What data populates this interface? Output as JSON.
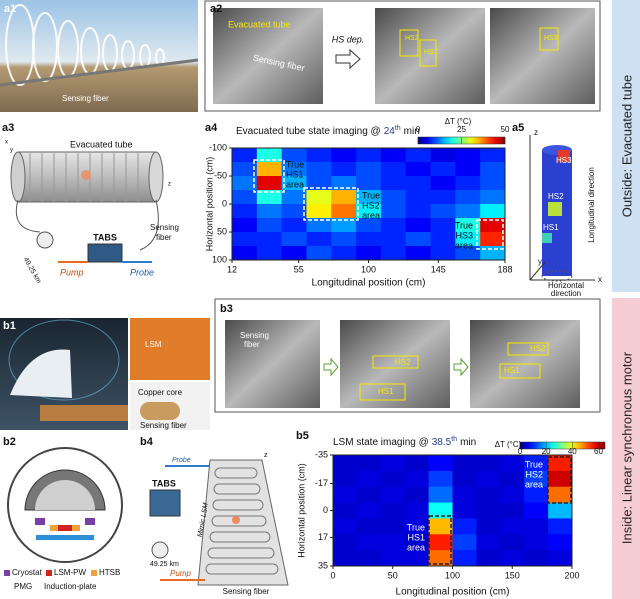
{
  "section_labels": [
    "Outside: Evacuated tube",
    "Inside: Linear synchronous motor"
  ],
  "panel_labels": [
    "a1",
    "a2",
    "a3",
    "a4",
    "a5",
    "b1",
    "b2",
    "b3",
    "b4",
    "b5"
  ],
  "a1": {
    "sensing_fiber": "Sensing fiber"
  },
  "a2": {
    "evacuated_tube": "Evacuated tube",
    "sensing_fiber": "Sensing fiber",
    "step": "HS dep.",
    "hs_middle": [
      "HS2",
      "HS1"
    ],
    "hs_right": "HS3"
  },
  "a3": {
    "evacuated_tube": "Evacuated tube",
    "tabs": "TABS",
    "distance": "49.25 km",
    "pump": "Pump",
    "probe": "Probe",
    "sensing_fiber": [
      "Sensing",
      "fiber"
    ],
    "axes": [
      "z",
      "y",
      "x"
    ]
  },
  "a5": {
    "hs": [
      "HS1",
      "HS2",
      "HS3"
    ],
    "axes": [
      "z",
      "y",
      "x"
    ],
    "longitudinal": "Longitudinal direction",
    "horizontal": [
      "Horizontal",
      "direction"
    ]
  },
  "b1": {
    "lsm": "LSM",
    "copper_core": "Copper core",
    "sensing_fiber": "Sensing fiber"
  },
  "b2": {
    "legend": [
      "Cryostat",
      "LSM-PW",
      "HTSB",
      "PMG",
      "Induction-plate"
    ]
  },
  "b3": {
    "sensing_fiber": [
      "Sensing",
      "fiber"
    ],
    "hs_middle": [
      "HS2",
      "HS1"
    ],
    "hs_right": [
      "HS2",
      "HS1"
    ]
  },
  "b4": {
    "tabs": "TABS",
    "distance": "49.25 km",
    "probe": "Probe",
    "pump": "Pump",
    "mimic": "Mimic LSM",
    "sensing_fiber": "Sensing fiber",
    "axis": "z"
  },
  "chart_data": [
    {
      "type": "heatmap",
      "title": "Evacuated tube state imaging @",
      "time": "24",
      "time_suffix": "th",
      "time_unit": "min",
      "xlabel": "Longitudinal position (cm)",
      "ylabel": "Horizontal position (cm)",
      "colorbar_label": "ΔT (°C)",
      "xlim": [
        12,
        188
      ],
      "xticks": [
        12,
        55,
        100,
        145,
        188
      ],
      "ylim": [
        -100,
        100
      ],
      "yticks": [
        -100,
        -50,
        0,
        50,
        100
      ],
      "y_reversed": true,
      "clim": [
        0,
        50
      ],
      "cticks": [
        0,
        25,
        50
      ],
      "xbins": [
        12,
        28,
        44,
        60,
        76,
        92,
        108,
        124,
        140,
        156,
        172,
        188
      ],
      "ybins": [
        -100,
        -75,
        -50,
        -25,
        0,
        25,
        50,
        75,
        100
      ],
      "z": [
        [
          8,
          20,
          10,
          8,
          6,
          8,
          6,
          8,
          5,
          6,
          8
        ],
        [
          10,
          35,
          12,
          10,
          8,
          10,
          8,
          6,
          8,
          6,
          10
        ],
        [
          12,
          45,
          15,
          10,
          12,
          10,
          8,
          8,
          6,
          8,
          10
        ],
        [
          10,
          20,
          12,
          30,
          35,
          15,
          10,
          8,
          8,
          10,
          12
        ],
        [
          8,
          12,
          10,
          32,
          38,
          18,
          10,
          8,
          10,
          12,
          18
        ],
        [
          6,
          10,
          8,
          12,
          14,
          10,
          8,
          6,
          8,
          20,
          45
        ],
        [
          8,
          8,
          10,
          8,
          10,
          8,
          8,
          10,
          8,
          18,
          42
        ],
        [
          6,
          8,
          6,
          10,
          8,
          6,
          8,
          6,
          8,
          10,
          15
        ]
      ],
      "annotations": [
        {
          "lines": [
            "True",
            "HS1",
            "area"
          ]
        },
        {
          "lines": [
            "True",
            "HS2",
            "area"
          ]
        },
        {
          "lines": [
            "True",
            "HS3",
            "area"
          ]
        }
      ]
    },
    {
      "type": "heatmap",
      "title": "LSM state imaging @",
      "time": "38.5",
      "time_suffix": "th",
      "time_unit": "min",
      "xlabel": "Longitudinal position (cm)",
      "ylabel": "Horizontal position (cm)",
      "colorbar_label": "ΔT (°C)",
      "xlim": [
        0,
        200
      ],
      "xticks": [
        0,
        50,
        100,
        150,
        200
      ],
      "ylim": [
        -35,
        35
      ],
      "yticks": [
        -35,
        -17,
        0,
        17,
        35
      ],
      "y_reversed": true,
      "clim": [
        0,
        65
      ],
      "cticks": [
        0,
        20,
        40,
        60
      ],
      "xbins": [
        0,
        20,
        40,
        60,
        80,
        100,
        120,
        140,
        160,
        180,
        200
      ],
      "ybins": [
        -35,
        -25,
        -15,
        -5,
        5,
        15,
        25,
        35
      ],
      "z": [
        [
          5,
          5,
          6,
          5,
          8,
          5,
          5,
          6,
          10,
          55
        ],
        [
          5,
          6,
          5,
          6,
          12,
          5,
          6,
          5,
          12,
          60
        ],
        [
          6,
          5,
          6,
          5,
          15,
          6,
          5,
          6,
          10,
          50
        ],
        [
          5,
          6,
          5,
          6,
          25,
          6,
          5,
          5,
          8,
          20
        ],
        [
          6,
          5,
          5,
          6,
          45,
          10,
          5,
          6,
          6,
          10
        ],
        [
          5,
          6,
          6,
          5,
          55,
          12,
          6,
          5,
          6,
          8
        ],
        [
          5,
          5,
          6,
          6,
          50,
          10,
          5,
          6,
          5,
          6
        ]
      ],
      "annotations": [
        {
          "lines": [
            "True",
            "HS1",
            "area"
          ]
        },
        {
          "lines": [
            "True",
            "HS2",
            "area"
          ]
        }
      ]
    }
  ]
}
